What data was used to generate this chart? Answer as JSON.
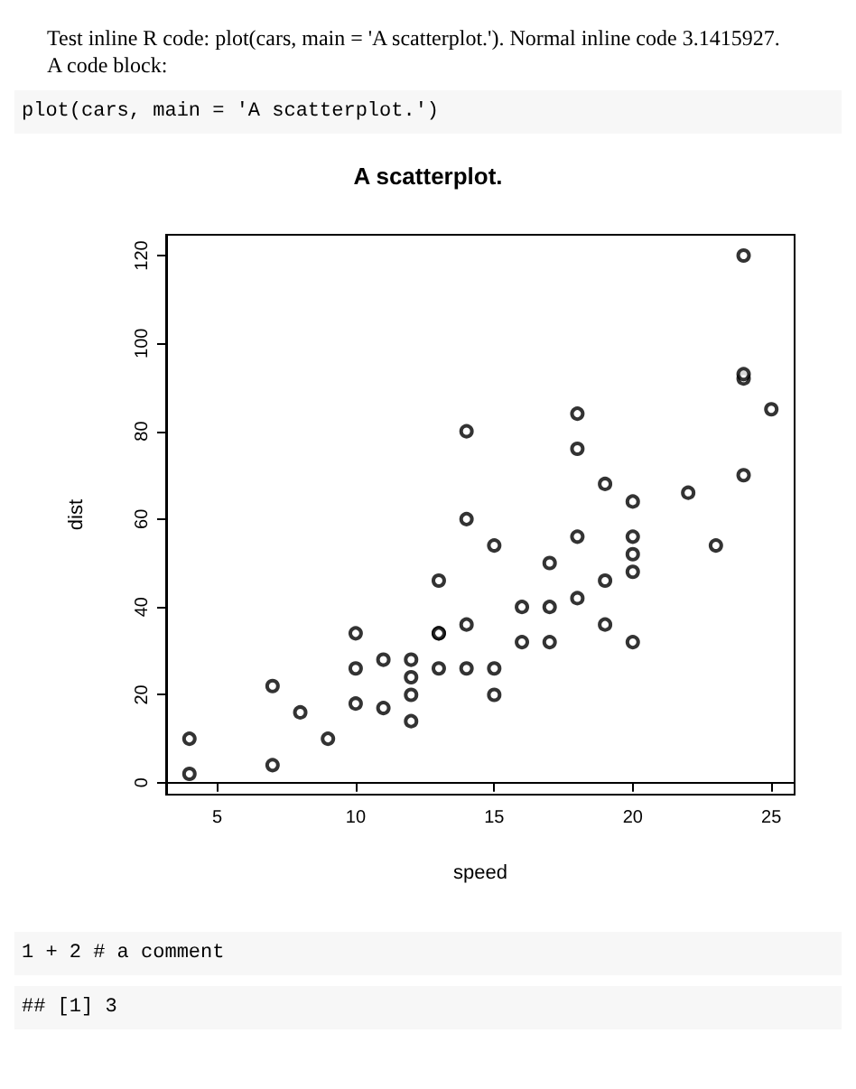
{
  "chart_data": {
    "type": "scatter",
    "title": "A scatterplot.",
    "xlabel": "speed",
    "ylabel": "dist",
    "x": [
      4,
      4,
      7,
      7,
      8,
      9,
      10,
      10,
      10,
      11,
      11,
      12,
      12,
      12,
      12,
      13,
      13,
      13,
      13,
      14,
      14,
      14,
      14,
      15,
      15,
      15,
      16,
      16,
      17,
      17,
      17,
      18,
      18,
      18,
      18,
      19,
      19,
      19,
      20,
      20,
      20,
      20,
      20,
      22,
      23,
      24,
      24,
      24,
      24,
      25
    ],
    "values": [
      2,
      10,
      4,
      22,
      16,
      10,
      18,
      26,
      34,
      17,
      28,
      14,
      20,
      24,
      28,
      26,
      34,
      34,
      46,
      26,
      36,
      60,
      80,
      20,
      26,
      54,
      32,
      40,
      32,
      40,
      50,
      42,
      56,
      76,
      84,
      36,
      46,
      68,
      32,
      48,
      52,
      56,
      64,
      66,
      54,
      70,
      92,
      93,
      120,
      85
    ],
    "color": "#000000",
    "marker": "circle",
    "xlim": [
      3.16,
      25.84
    ],
    "xticks": [
      5,
      10,
      15,
      20,
      25
    ],
    "ylim": [
      -2.72,
      124.72
    ],
    "yticks": [
      0,
      20,
      40,
      60,
      80,
      100,
      120
    ],
    "annotations": [
      "Test inline R code: plot(cars, main = 'A scatterplot.'). Normal inline code 3.1415927.",
      "A code block:",
      "plot(cars, main = 'A scatterplot.')",
      "1 + 2 # a comment",
      "## [1] 3"
    ]
  }
}
